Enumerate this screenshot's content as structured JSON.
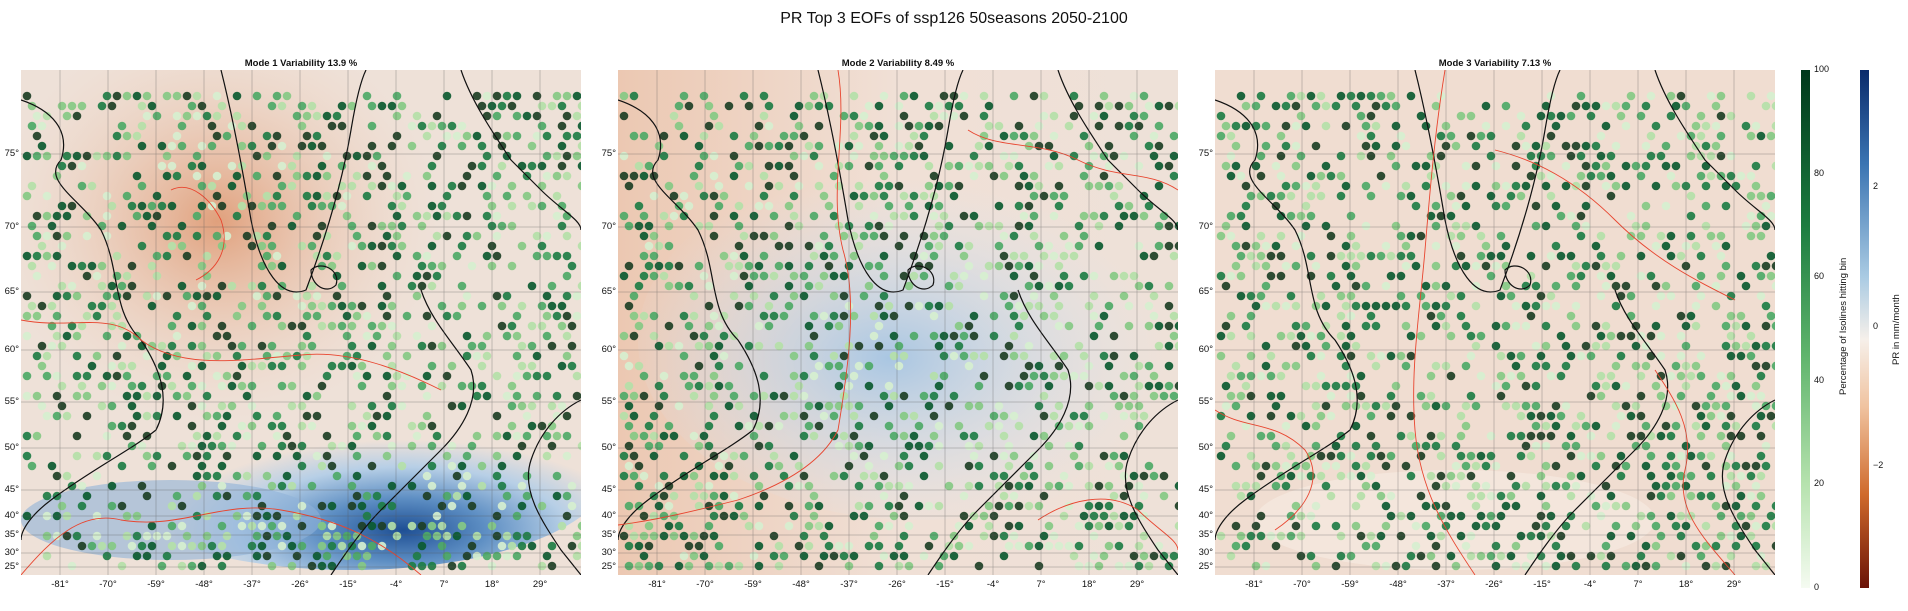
{
  "title": "PR Top 3 EOFs of ssp126 50seasons 2050-2100",
  "lat_ticks": [
    "75°",
    "70°",
    "65°",
    "60°",
    "55°",
    "50°",
    "45°",
    "40°",
    "35°",
    "30°",
    "25°"
  ],
  "lon_ticks": [
    "-81°",
    "-70°",
    "-59°",
    "-48°",
    "-37°",
    "-26°",
    "-15°",
    "-4°",
    "7°",
    "18°",
    "29°"
  ],
  "chart_data": [
    {
      "type": "heatmap",
      "title": "Mode 1 Variability 13.9 %",
      "variance_percent": 13.9,
      "pattern": "positive (red) over Greenland and Labrador sea, strong negative (blue) over subtropical Atlantic near Iberia",
      "xlim": [
        -90,
        38
      ],
      "ylim": [
        22,
        82
      ],
      "x_ticks": [
        -81,
        -70,
        -59,
        -48,
        -37,
        -26,
        -15,
        -4,
        7,
        18,
        29
      ],
      "y_ticks": [
        75,
        70,
        65,
        60,
        55,
        50,
        45,
        40,
        35,
        30,
        25
      ]
    },
    {
      "type": "heatmap",
      "title": "Mode 2 Variability 8.49 %",
      "variance_percent": 8.49,
      "pattern": "positive (red) over western Atlantic and Greenland, negative (blue) over eastern Atlantic and Norwegian sea",
      "xlim": [
        -90,
        38
      ],
      "ylim": [
        22,
        82
      ],
      "x_ticks": [
        -81,
        -70,
        -59,
        -48,
        -37,
        -26,
        -15,
        -4,
        7,
        18,
        29
      ],
      "y_ticks": [
        75,
        70,
        65,
        60,
        55,
        50,
        45,
        40,
        35,
        30,
        25
      ]
    },
    {
      "type": "heatmap",
      "title": "Mode 3 Variability 7.13 %",
      "variance_percent": 7.13,
      "pattern": "weak positive (light red) over most of domain",
      "xlim": [
        -90,
        38
      ],
      "ylim": [
        22,
        82
      ],
      "x_ticks": [
        -81,
        -70,
        -59,
        -48,
        -37,
        -26,
        -15,
        -4,
        7,
        18,
        29
      ],
      "y_ticks": [
        75,
        70,
        65,
        60,
        55,
        50,
        45,
        40,
        35,
        30,
        25
      ]
    }
  ],
  "colorbar_percentage": {
    "label": "Percentage of Isolines hitting bin",
    "ticks": [
      "100",
      "80",
      "60",
      "40",
      "20",
      "0"
    ],
    "range": [
      0,
      100
    ],
    "colormap": "Greens"
  },
  "colorbar_pr": {
    "label": "PR in mm/month",
    "ticks": [
      "2",
      "0",
      "−2"
    ],
    "range": [
      -3.5,
      3.5
    ],
    "colormap": "RdBu"
  },
  "colors": {
    "coast": "#111111",
    "contour": "#e8452f",
    "grid": "#555555"
  }
}
